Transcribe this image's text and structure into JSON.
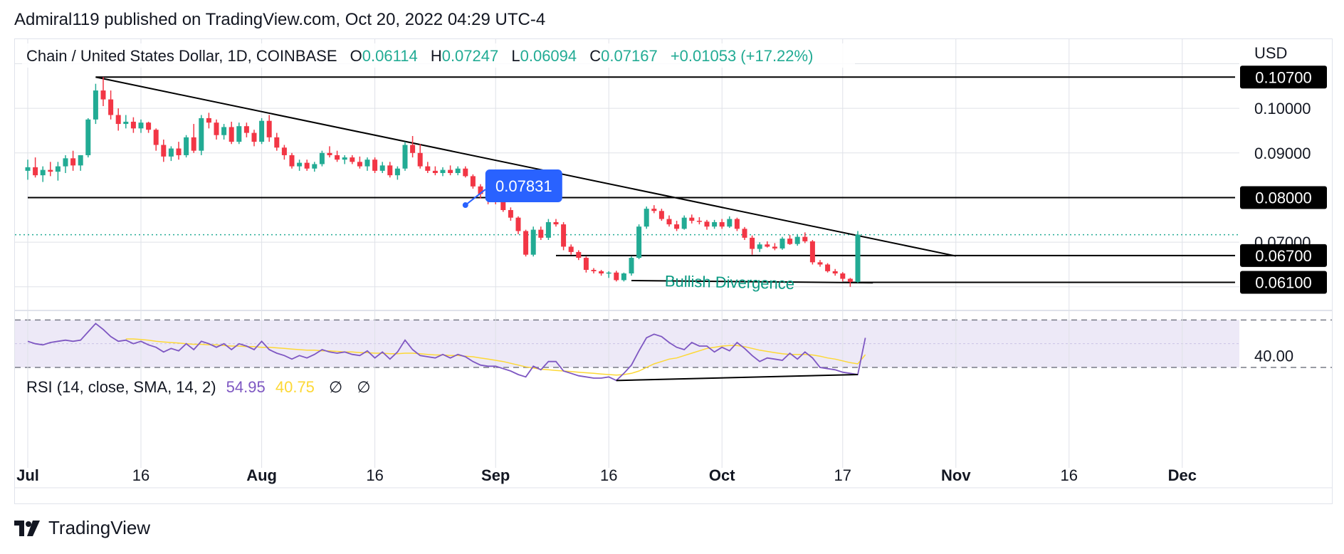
{
  "publisher": "Admiral119 published on TradingView.com, Oct 20, 2022 04:29 UTC-4",
  "brand": "TradingView",
  "legend": {
    "symbol": "Chain / United States Dollar, 1D, COINBASE",
    "o_label": "O",
    "o_value": "0.06114",
    "h_label": "H",
    "h_value": "0.07247",
    "l_label": "L",
    "l_value": "0.06094",
    "c_label": "C",
    "c_value": "0.07167",
    "change": "+0.01053 (+17.22%)"
  },
  "rsi_legend": {
    "label": "RSI (14, close, SMA, 14, 2)",
    "rsi_value": "54.95",
    "sma_value": "40.75",
    "null_glyph_1": "∅",
    "null_glyph_2": "∅"
  },
  "colors": {
    "up": "#22ab94",
    "down": "#f23645",
    "rsi_line": "#7e57c2",
    "rsi_sma": "#fdd835",
    "rsi_band": "#ede9f7",
    "callout": "#2962ff",
    "annotation_text": "#089981",
    "grid": "#dfe2e8"
  },
  "chart_data": [
    {
      "type": "candlestick",
      "title": "Chain / United States Dollar, 1D, COINBASE",
      "currency_label": "USD",
      "ylim": [
        0.0555,
        0.1155
      ],
      "y_ticks": [
        "0.10000",
        "0.09000",
        "0.07000"
      ],
      "x_ticks": [
        "Jul",
        "16",
        "Aug",
        "16",
        "Sep",
        "16",
        "Oct",
        "17",
        "Nov",
        "16",
        "Dec"
      ],
      "x_tick_days": [
        0,
        15,
        31,
        46,
        62,
        77,
        92,
        108,
        123,
        138,
        153
      ],
      "last_price": 0.07167,
      "price_markers": [
        "0.10700",
        "0.08000",
        "0.06700",
        "0.06100"
      ],
      "callout": {
        "label": "0.07831",
        "day": 58,
        "price": 0.07831
      },
      "annotation": {
        "text": "Bullish Divergence"
      },
      "lines": [
        {
          "name": "descending trendline",
          "from": [
            9,
            0.107
          ],
          "to": [
            123,
            0.0669
          ]
        },
        {
          "name": "horizontal 0.080",
          "from": [
            0,
            0.08
          ],
          "to": [
            160,
            0.08
          ]
        },
        {
          "name": "horizontal 0.107",
          "from": [
            9,
            0.107
          ],
          "to": [
            160,
            0.107
          ]
        },
        {
          "name": "horizontal 0.067",
          "from": [
            70,
            0.067
          ],
          "to": [
            160,
            0.067
          ]
        },
        {
          "name": "horizontal 0.061",
          "from": [
            108,
            0.061
          ],
          "to": [
            160,
            0.061
          ]
        },
        {
          "name": "divergence low",
          "from": [
            80,
            0.0614
          ],
          "to": [
            112,
            0.0609
          ]
        }
      ],
      "candles": [
        [
          0.086,
          0.0885,
          0.084,
          0.0868
        ],
        [
          0.0868,
          0.089,
          0.0845,
          0.085
        ],
        [
          0.085,
          0.087,
          0.0835,
          0.0862
        ],
        [
          0.0862,
          0.088,
          0.0848,
          0.0858
        ],
        [
          0.0858,
          0.088,
          0.0838,
          0.087
        ],
        [
          0.087,
          0.0895,
          0.0855,
          0.0888
        ],
        [
          0.0888,
          0.0905,
          0.086,
          0.0872
        ],
        [
          0.0872,
          0.0895,
          0.086,
          0.0895
        ],
        [
          0.0895,
          0.0978,
          0.089,
          0.0975
        ],
        [
          0.0975,
          0.1055,
          0.0965,
          0.104
        ],
        [
          0.104,
          0.107,
          0.1005,
          0.102
        ],
        [
          0.102,
          0.104,
          0.0975,
          0.0985
        ],
        [
          0.0985,
          0.1,
          0.095,
          0.0965
        ],
        [
          0.0965,
          0.0985,
          0.0955,
          0.097
        ],
        [
          0.097,
          0.098,
          0.0945,
          0.0955
        ],
        [
          0.0955,
          0.0975,
          0.0945,
          0.0968
        ],
        [
          0.0968,
          0.097,
          0.0945,
          0.0952
        ],
        [
          0.0952,
          0.0955,
          0.0905,
          0.0918
        ],
        [
          0.0918,
          0.093,
          0.088,
          0.0892
        ],
        [
          0.0892,
          0.0915,
          0.0882,
          0.091
        ],
        [
          0.091,
          0.0925,
          0.0885,
          0.0895
        ],
        [
          0.0895,
          0.094,
          0.089,
          0.0935
        ],
        [
          0.0935,
          0.0965,
          0.09,
          0.0905
        ],
        [
          0.0905,
          0.0985,
          0.0895,
          0.0978
        ],
        [
          0.0978,
          0.099,
          0.0955,
          0.0968
        ],
        [
          0.0968,
          0.0975,
          0.093,
          0.094
        ],
        [
          0.094,
          0.0965,
          0.093,
          0.0958
        ],
        [
          0.0958,
          0.097,
          0.092,
          0.0925
        ],
        [
          0.0925,
          0.0968,
          0.092,
          0.096
        ],
        [
          0.096,
          0.0968,
          0.0935,
          0.0945
        ],
        [
          0.0945,
          0.0952,
          0.0915,
          0.0925
        ],
        [
          0.0925,
          0.0978,
          0.092,
          0.0972
        ],
        [
          0.0972,
          0.0985,
          0.0925,
          0.0935
        ],
        [
          0.0935,
          0.0945,
          0.0905,
          0.0912
        ],
        [
          0.0912,
          0.0918,
          0.0885,
          0.0895
        ],
        [
          0.0895,
          0.09,
          0.0865,
          0.087
        ],
        [
          0.087,
          0.0885,
          0.086,
          0.0878
        ],
        [
          0.0878,
          0.0885,
          0.086,
          0.0865
        ],
        [
          0.0865,
          0.088,
          0.0858,
          0.0875
        ],
        [
          0.0875,
          0.0905,
          0.087,
          0.09
        ],
        [
          0.09,
          0.0915,
          0.089,
          0.0895
        ],
        [
          0.0895,
          0.0905,
          0.088,
          0.0885
        ],
        [
          0.0885,
          0.0895,
          0.0875,
          0.089
        ],
        [
          0.089,
          0.0895,
          0.0875,
          0.088
        ],
        [
          0.088,
          0.0892,
          0.0865,
          0.087
        ],
        [
          0.087,
          0.089,
          0.086,
          0.0885
        ],
        [
          0.0885,
          0.089,
          0.0855,
          0.086
        ],
        [
          0.086,
          0.088,
          0.0855,
          0.0872
        ],
        [
          0.0872,
          0.088,
          0.0845,
          0.085
        ],
        [
          0.085,
          0.087,
          0.084,
          0.0865
        ],
        [
          0.0865,
          0.0925,
          0.086,
          0.0918
        ],
        [
          0.0918,
          0.0938,
          0.089,
          0.09
        ],
        [
          0.09,
          0.092,
          0.0865,
          0.087
        ],
        [
          0.087,
          0.088,
          0.0855,
          0.086
        ],
        [
          0.086,
          0.087,
          0.085,
          0.0855
        ],
        [
          0.0855,
          0.0868,
          0.0848,
          0.0862
        ],
        [
          0.0862,
          0.0872,
          0.085,
          0.0855
        ],
        [
          0.0855,
          0.087,
          0.085,
          0.0865
        ],
        [
          0.0865,
          0.087,
          0.0845,
          0.0848
        ],
        [
          0.0848,
          0.0852,
          0.082,
          0.0825
        ],
        [
          0.0825,
          0.083,
          0.0798,
          0.0808
        ],
        [
          0.0808,
          0.0812,
          0.0785,
          0.0795
        ],
        [
          0.0795,
          0.0798,
          0.0785,
          0.079
        ],
        [
          0.079,
          0.0792,
          0.0768,
          0.0772
        ],
        [
          0.0772,
          0.0778,
          0.0748,
          0.0755
        ],
        [
          0.0755,
          0.0758,
          0.0718,
          0.0725
        ],
        [
          0.0725,
          0.0728,
          0.0668,
          0.0672
        ],
        [
          0.0672,
          0.0735,
          0.0668,
          0.0728
        ],
        [
          0.0728,
          0.0735,
          0.0705,
          0.071
        ],
        [
          0.071,
          0.0752,
          0.0705,
          0.0745
        ],
        [
          0.0745,
          0.0752,
          0.0735,
          0.074
        ],
        [
          0.074,
          0.0745,
          0.0682,
          0.069
        ],
        [
          0.069,
          0.0695,
          0.0672,
          0.0678
        ],
        [
          0.0678,
          0.0682,
          0.066,
          0.0665
        ],
        [
          0.0665,
          0.0668,
          0.0632,
          0.0638
        ],
        [
          0.0638,
          0.0642,
          0.063,
          0.0635
        ],
        [
          0.0635,
          0.0638,
          0.0625,
          0.063
        ],
        [
          0.063,
          0.0635,
          0.062,
          0.0632
        ],
        [
          0.0632,
          0.0636,
          0.0612,
          0.0615
        ],
        [
          0.0615,
          0.0632,
          0.0612,
          0.063
        ],
        [
          0.063,
          0.0668,
          0.0625,
          0.0665
        ],
        [
          0.0665,
          0.074,
          0.0662,
          0.0735
        ],
        [
          0.0735,
          0.078,
          0.073,
          0.0775
        ],
        [
          0.0775,
          0.0783,
          0.0765,
          0.077
        ],
        [
          0.077,
          0.0775,
          0.0748,
          0.0752
        ],
        [
          0.0752,
          0.076,
          0.0735,
          0.074
        ],
        [
          0.074,
          0.0748,
          0.0725,
          0.073
        ],
        [
          0.073,
          0.076,
          0.0728,
          0.0755
        ],
        [
          0.0755,
          0.0762,
          0.0742,
          0.0748
        ],
        [
          0.0748,
          0.0756,
          0.074,
          0.0746
        ],
        [
          0.0746,
          0.075,
          0.0728,
          0.0735
        ],
        [
          0.0735,
          0.075,
          0.073,
          0.0745
        ],
        [
          0.0745,
          0.0752,
          0.073,
          0.0735
        ],
        [
          0.0735,
          0.0758,
          0.0732,
          0.0752
        ],
        [
          0.0752,
          0.0755,
          0.0725,
          0.073
        ],
        [
          0.073,
          0.0734,
          0.0705,
          0.071
        ],
        [
          0.071,
          0.0715,
          0.0672,
          0.0685
        ],
        [
          0.0685,
          0.07,
          0.0678,
          0.0695
        ],
        [
          0.0695,
          0.0702,
          0.0688,
          0.069
        ],
        [
          0.069,
          0.0698,
          0.0682,
          0.0686
        ],
        [
          0.0686,
          0.0712,
          0.0683,
          0.0708
        ],
        [
          0.0708,
          0.0716,
          0.0694,
          0.0696
        ],
        [
          0.0696,
          0.0718,
          0.0692,
          0.0712
        ],
        [
          0.0712,
          0.0722,
          0.0698,
          0.0702
        ],
        [
          0.0702,
          0.0705,
          0.065,
          0.0655
        ],
        [
          0.0655,
          0.066,
          0.0645,
          0.065
        ],
        [
          0.065,
          0.0653,
          0.0632,
          0.0635
        ],
        [
          0.0635,
          0.064,
          0.0625,
          0.063
        ],
        [
          0.063,
          0.0633,
          0.0612,
          0.0618
        ],
        [
          0.0618,
          0.062,
          0.06,
          0.0611
        ],
        [
          0.0611,
          0.0725,
          0.0609,
          0.0717
        ]
      ]
    },
    {
      "type": "line",
      "title": "RSI (14, close, SMA, 14, 2)",
      "ylim": [
        15,
        75
      ],
      "y_ticks": [
        "40.00"
      ],
      "band": [
        30,
        70
      ],
      "middle_line": 50,
      "series": [
        {
          "name": "RSI",
          "values": [
            52,
            50,
            49,
            51,
            52,
            53,
            52,
            53,
            60,
            67,
            62,
            56,
            52,
            53,
            50,
            52,
            49,
            47,
            43,
            46,
            44,
            50,
            45,
            52,
            50,
            47,
            50,
            45,
            50,
            48,
            45,
            52,
            45,
            42,
            40,
            37,
            40,
            38,
            41,
            45,
            43,
            42,
            43,
            41,
            40,
            44,
            38,
            43,
            37,
            43,
            53,
            45,
            40,
            39,
            38,
            41,
            38,
            41,
            39,
            35,
            32,
            31,
            31,
            29,
            27,
            24,
            22,
            31,
            28,
            35,
            35,
            27,
            25,
            23,
            22,
            21,
            21,
            22,
            19,
            25,
            32,
            44,
            55,
            58,
            56,
            51,
            47,
            45,
            51,
            48,
            48,
            43,
            47,
            44,
            51,
            46,
            40,
            35,
            38,
            37,
            36,
            42,
            37,
            43,
            38,
            30,
            29,
            28,
            26,
            25,
            24,
            54.95
          ]
        },
        {
          "name": "SMA",
          "values": [
            null,
            null,
            null,
            null,
            null,
            null,
            null,
            null,
            null,
            null,
            null,
            null,
            null,
            54,
            54,
            53.5,
            53,
            52,
            51.5,
            51,
            50.5,
            50,
            49.5,
            49.5,
            49,
            49,
            48.5,
            48,
            48,
            47.5,
            47.5,
            47,
            47,
            46.5,
            46,
            45.5,
            45,
            44.5,
            44.5,
            44,
            44,
            43.5,
            43,
            43,
            42.5,
            42.5,
            42,
            42,
            41.5,
            41.5,
            42,
            42,
            41.5,
            41,
            40.5,
            40.5,
            40,
            40,
            39.5,
            39,
            38,
            37,
            36,
            35,
            33.5,
            32,
            30.5,
            29.5,
            28.5,
            28,
            27.5,
            27,
            26.5,
            26,
            25.5,
            25,
            24.5,
            24,
            23.5,
            24,
            25,
            27,
            30,
            33,
            35,
            37,
            38,
            40,
            42,
            44,
            46,
            47,
            48,
            48.5,
            48.5,
            47.5,
            46,
            44.5,
            43.5,
            42.5,
            41.5,
            41,
            41,
            41,
            40.5,
            39.5,
            38,
            37,
            35.5,
            34,
            33,
            40.75
          ]
        }
      ]
    }
  ]
}
